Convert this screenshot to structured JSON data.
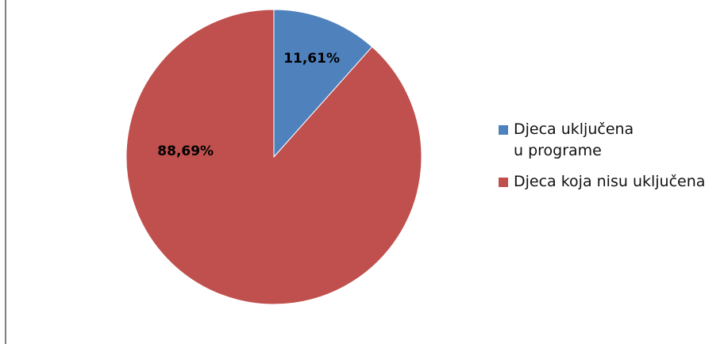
{
  "chart_data": {
    "type": "pie",
    "title": "",
    "categories": [
      "Djeca uključena\nu programe",
      "Djeca koja nisu uključena"
    ],
    "values": [
      11.61,
      88.69
    ],
    "labels": [
      "11,61%",
      "88,69%"
    ],
    "colors": [
      "#4f81bd",
      "#c0504d"
    ],
    "legend_position": "right",
    "start_angle_deg": 0,
    "direction": "clockwise"
  },
  "legend": {
    "items": [
      {
        "label": "Djeca uključena\nu programe",
        "color": "#4f81bd"
      },
      {
        "label": "Djeca koja nisu uključena",
        "color": "#c0504d"
      }
    ]
  },
  "frame": {
    "border_color": "#7f7f7f"
  }
}
